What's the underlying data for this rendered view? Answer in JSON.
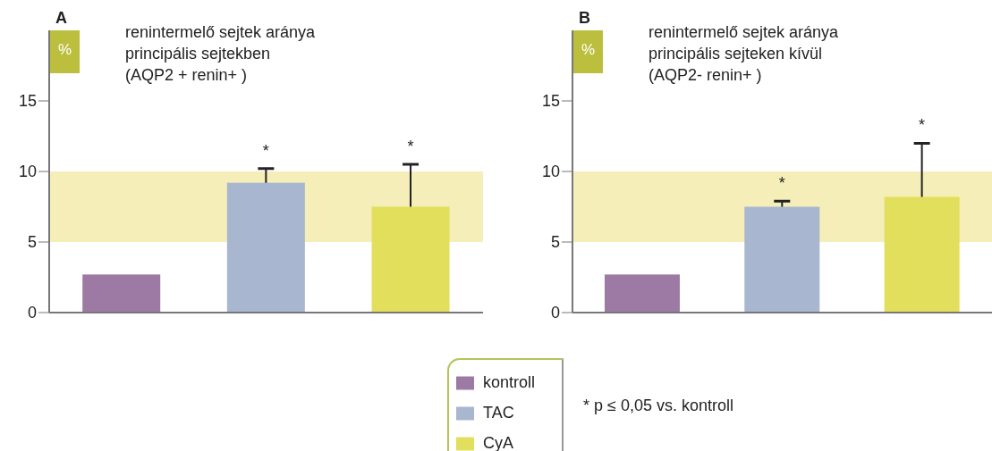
{
  "chart_data": [
    {
      "type": "bar",
      "title": "renintermelő sejtek aránya principális sejtekben",
      "subtitle": "(AQP2 + renin+ )",
      "ylabel": "%",
      "annotations": [
        "A",
        "*",
        "*",
        "* p ≤ 0,05 vs. kontroll"
      ],
      "categories": [
        null,
        null,
        null
      ],
      "stacked": true,
      "series": [
        {
          "name": "kontroll",
          "color": "#9d7aa3",
          "values": [
            2.7,
            null,
            null
          ],
          "errors": [
            null,
            null,
            null
          ]
        },
        {
          "name": "TAC",
          "color": "#a8b6cf",
          "values": [
            null,
            9.2,
            null
          ],
          "errors": [
            null,
            [
              9.2,
              10.2
            ],
            null
          ]
        },
        {
          "name": "CyA",
          "color": "#e2df5c",
          "values": [
            null,
            null,
            7.5
          ],
          "errors": [
            null,
            null,
            [
              7.5,
              10.5
            ]
          ]
        }
      ],
      "ylim": [
        0,
        20
      ],
      "yticks": [
        0,
        5,
        10,
        15
      ],
      "bands": [
        {
          "axis": "y",
          "from": 5,
          "to": 10,
          "color": "#f5eeb8"
        }
      ],
      "tick_labels": "y",
      "legend": "bottom"
    },
    {
      "type": "bar",
      "title": "renintermelő sejtek aránya principális sejteken kívül",
      "subtitle": "(AQP2- renin+ )",
      "ylabel": "%",
      "annotations": [
        "B",
        "*",
        "*"
      ],
      "categories": [
        null,
        null,
        null
      ],
      "stacked": true,
      "series": [
        {
          "color": "#9d7aa3",
          "values": [
            2.7,
            null,
            null
          ],
          "errors": [
            null,
            null,
            null
          ]
        },
        {
          "color": "#a8b6cf",
          "values": [
            null,
            7.5,
            null
          ],
          "errors": [
            null,
            [
              7.5,
              7.9
            ],
            null
          ]
        },
        {
          "color": "#e2df5c",
          "values": [
            null,
            null,
            8.2
          ],
          "errors": [
            null,
            null,
            [
              8.2,
              12.0
            ]
          ]
        }
      ],
      "ylim": [
        0,
        20
      ],
      "yticks": [
        0,
        5,
        10,
        15
      ],
      "bands": [
        {
          "axis": "y",
          "from": 5,
          "to": 10,
          "color": "#f5eeb8"
        }
      ],
      "tick_labels": "y"
    }
  ]
}
